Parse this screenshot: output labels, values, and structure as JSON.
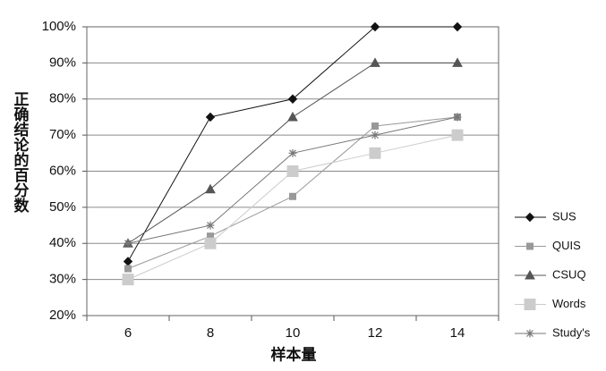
{
  "chart_data": {
    "type": "line",
    "x_label": "样本量",
    "y_label": "正确结论的百分数",
    "categories": [
      6,
      8,
      10,
      12,
      14
    ],
    "ylim": [
      20,
      100
    ],
    "yticks": [
      {
        "value": 20,
        "label": "20%"
      },
      {
        "value": 30,
        "label": "30%"
      },
      {
        "value": 40,
        "label": "40%"
      },
      {
        "value": 50,
        "label": "50%"
      },
      {
        "value": 60,
        "label": "60%"
      },
      {
        "value": 70,
        "label": "70%"
      },
      {
        "value": 80,
        "label": "80%"
      },
      {
        "value": 90,
        "label": "90%"
      },
      {
        "value": 100,
        "label": "100%"
      }
    ],
    "grid": true,
    "legend": "right",
    "series": [
      {
        "name": "SUS",
        "color": "#111111",
        "marker": "diamond",
        "values": [
          35,
          75,
          80,
          100,
          100
        ]
      },
      {
        "name": "QUIS",
        "color": "#999999",
        "marker": "square",
        "values": [
          33,
          42,
          53,
          72.5,
          75
        ]
      },
      {
        "name": "CSUQ",
        "color": "#555555",
        "marker": "triangle",
        "values": [
          40,
          55,
          75,
          90,
          90
        ]
      },
      {
        "name": "Words",
        "color": "#cccccc",
        "marker": "bigsquare",
        "values": [
          30,
          40,
          60,
          65,
          70
        ]
      },
      {
        "name": "Study's",
        "color": "#777777",
        "marker": "star",
        "values": [
          40,
          45,
          65,
          70,
          75
        ]
      }
    ]
  }
}
